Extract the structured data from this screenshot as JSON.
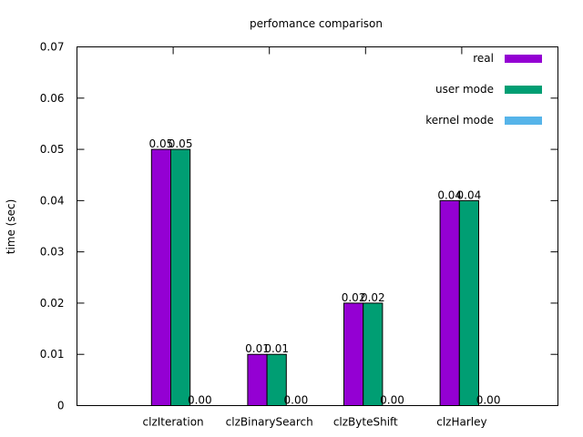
{
  "chart_data": {
    "type": "bar",
    "title": "perfomance comparison",
    "xlabel": "",
    "ylabel": "time (sec)",
    "ylim": [
      0,
      0.07
    ],
    "yticks": [
      "0",
      "0.01",
      "0.02",
      "0.03",
      "0.04",
      "0.05",
      "0.06",
      "0.07"
    ],
    "grid": false,
    "legend_position": "top-right",
    "categories": [
      "clzIteration",
      "clzBinarySearch",
      "clzByteShift",
      "clzHarley"
    ],
    "series": [
      {
        "name": "real",
        "color": "#9400d3",
        "values": [
          0.05,
          0.01,
          0.02,
          0.04
        ],
        "labels": [
          "0.05",
          "0.01",
          "0.02",
          "0.04"
        ]
      },
      {
        "name": "user mode",
        "color": "#009e73",
        "values": [
          0.05,
          0.01,
          0.02,
          0.04
        ],
        "labels": [
          "0.05",
          "0.01",
          "0.02",
          "0.04"
        ]
      },
      {
        "name": "kernel mode",
        "color": "#56b4e9",
        "values": [
          0.0,
          0.0,
          0.0,
          0.0
        ],
        "labels": [
          "0.00",
          "0.00",
          "0.00",
          "0.00"
        ]
      }
    ]
  }
}
